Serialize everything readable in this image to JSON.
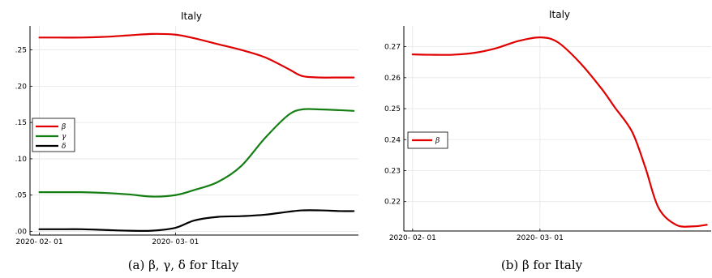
{
  "chart_data": [
    {
      "type": "line",
      "title": "Italy",
      "caption": "(a) β, γ, δ for Italy",
      "x_ticks": [
        "2020- 02- 01",
        "2020- 03- 01"
      ],
      "y_ticks": [
        ".00",
        ".05",
        ".10",
        ".15",
        ".20",
        ".25"
      ],
      "ylim": [
        -0.005,
        0.283
      ],
      "x": [
        "2020-02-01",
        "2020-02-05",
        "2020-02-10",
        "2020-02-15",
        "2020-02-20",
        "2020-02-25",
        "2020-03-01",
        "2020-03-05",
        "2020-03-10",
        "2020-03-15",
        "2020-03-20",
        "2020-03-25",
        "2020-03-28",
        "2020-04-01",
        "2020-04-05",
        "2020-04-08"
      ],
      "legend_position": "left",
      "series": [
        {
          "name": "β",
          "color": "#e00000",
          "values": [
            0.267,
            0.267,
            0.267,
            0.268,
            0.27,
            0.272,
            0.271,
            0.266,
            0.258,
            0.25,
            0.24,
            0.224,
            0.214,
            0.212,
            0.212,
            0.212
          ]
        },
        {
          "name": "γ",
          "color": "#137f13",
          "values": [
            0.054,
            0.054,
            0.054,
            0.053,
            0.051,
            0.048,
            0.05,
            0.057,
            0.068,
            0.09,
            0.128,
            0.16,
            0.168,
            0.168,
            0.167,
            0.166
          ]
        },
        {
          "name": "δ",
          "color": "#000000",
          "values": [
            0.003,
            0.003,
            0.003,
            0.002,
            0.001,
            0.001,
            0.005,
            0.015,
            0.02,
            0.021,
            0.023,
            0.027,
            0.029,
            0.029,
            0.028,
            0.028
          ]
        }
      ]
    },
    {
      "type": "line",
      "title": "Italy",
      "caption": "(b) β for Italy",
      "x_ticks": [
        "2020- 02- 01",
        "2020- 03- 01"
      ],
      "y_ticks": [
        "0.22",
        "0.23",
        "0.24",
        "0.25",
        "0.26",
        "0.27"
      ],
      "ylim": [
        0.2105,
        0.2767
      ],
      "x": [
        "2020-02-01",
        "2020-02-05",
        "2020-02-10",
        "2020-02-15",
        "2020-02-20",
        "2020-02-25",
        "2020-03-01",
        "2020-03-05",
        "2020-03-10",
        "2020-03-15",
        "2020-03-18",
        "2020-03-22",
        "2020-03-25",
        "2020-03-28",
        "2020-04-01",
        "2020-04-05",
        "2020-04-08"
      ],
      "legend_position": "left",
      "series": [
        {
          "name": "β",
          "color": "#e00000",
          "values": [
            0.2675,
            0.2674,
            0.2674,
            0.268,
            0.2695,
            0.2718,
            0.273,
            0.2715,
            0.265,
            0.2565,
            0.2505,
            0.2425,
            0.231,
            0.218,
            0.2125,
            0.212,
            0.2125
          ]
        }
      ]
    }
  ]
}
